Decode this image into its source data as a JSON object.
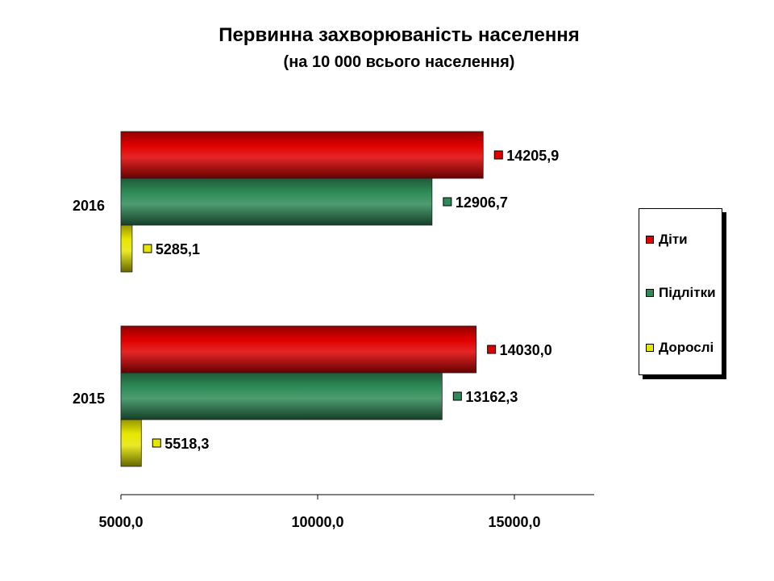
{
  "chart_data": {
    "type": "bar",
    "orientation": "horizontal",
    "title": "Первинна захворюваність населення",
    "subtitle": "(на 10 000 всього населення)",
    "categories": [
      "2016",
      "2015"
    ],
    "series": [
      {
        "name": "Діти",
        "color": "#e00000",
        "values": [
          14205.9,
          14030.0
        ],
        "labels": [
          "14205,9",
          "14030,0"
        ]
      },
      {
        "name": "Підлітки",
        "color": "#2e8b57",
        "values": [
          12906.7,
          13162.3
        ],
        "labels": [
          "12906,7",
          "13162,3"
        ]
      },
      {
        "name": "Дорослі",
        "color": "#e6e600",
        "values": [
          5285.1,
          5518.3
        ],
        "labels": [
          "5285,1",
          "5518,3"
        ]
      }
    ],
    "x_ticks": [
      5000,
      10000,
      15000
    ],
    "x_tick_labels": [
      "5000,0",
      "10000,0",
      "15000,0"
    ],
    "xlim": [
      5000,
      17000
    ],
    "grid": false,
    "legend_position": "right"
  }
}
